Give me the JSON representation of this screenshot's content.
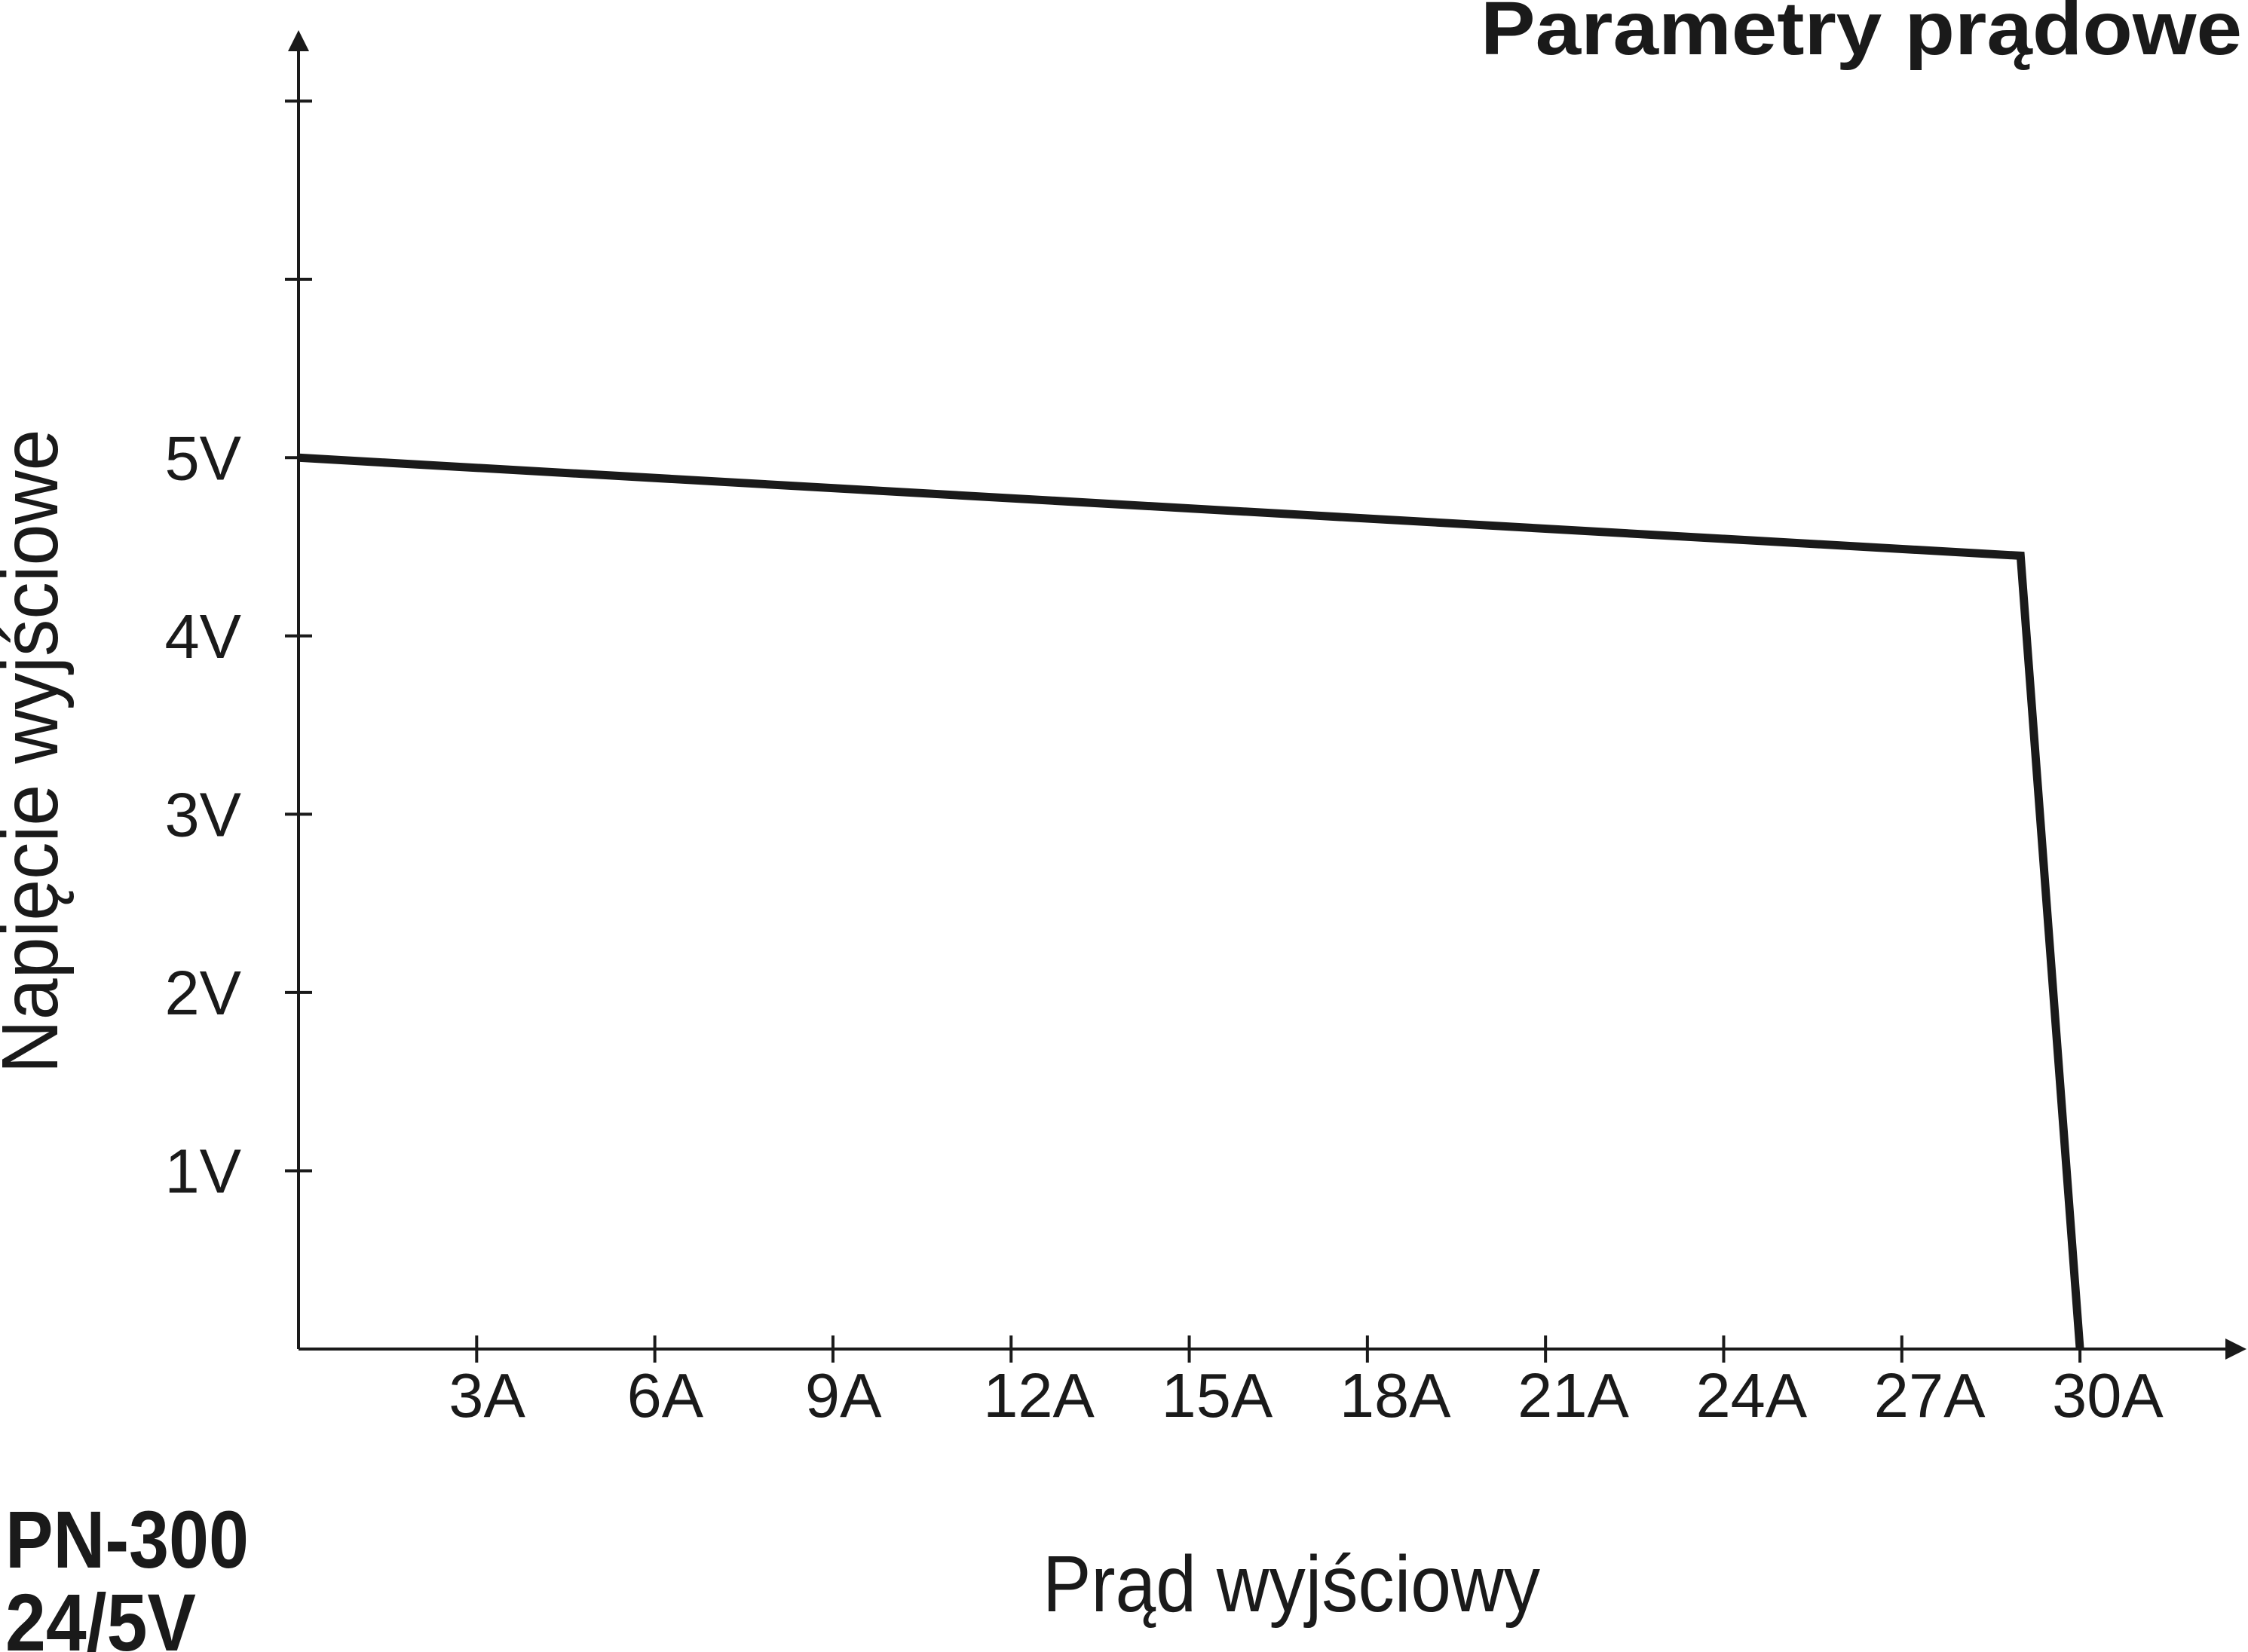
{
  "title": "Parametry prądowe",
  "model_label": {
    "line1": "PN-300",
    "line2": "24/5V"
  },
  "colors": {
    "ink": "#1a1a1a",
    "background": "#ffffff"
  },
  "chart_data": {
    "type": "line",
    "title": "Parametry prądowe",
    "xlabel": "Prąd wyjściowy",
    "ylabel": "Napięcie wyjściowe",
    "x_unit": "A",
    "y_unit": "V",
    "xlim": [
      0,
      30.8
    ],
    "ylim": [
      0,
      7.4
    ],
    "grid": false,
    "legend": false,
    "x_ticks": [
      {
        "value": 3,
        "label": "3A"
      },
      {
        "value": 6,
        "label": "6A"
      },
      {
        "value": 9,
        "label": "9A"
      },
      {
        "value": 12,
        "label": "12A"
      },
      {
        "value": 15,
        "label": "15A"
      },
      {
        "value": 18,
        "label": "18A"
      },
      {
        "value": 21,
        "label": "21A"
      },
      {
        "value": 24,
        "label": "24A"
      },
      {
        "value": 27,
        "label": "27A"
      },
      {
        "value": 30,
        "label": "30A"
      }
    ],
    "y_ticks": [
      {
        "value": 1,
        "label": "1V"
      },
      {
        "value": 2,
        "label": "2V"
      },
      {
        "value": 3,
        "label": "3V"
      },
      {
        "value": 4,
        "label": "4V"
      },
      {
        "value": 5,
        "label": "5V"
      },
      {
        "value": 6,
        "label": ""
      },
      {
        "value": 7,
        "label": ""
      }
    ],
    "series": [
      {
        "name": "PN-300 24/5V",
        "points": [
          [
            0,
            5
          ],
          [
            29,
            4.45
          ],
          [
            30,
            0
          ]
        ]
      }
    ]
  }
}
